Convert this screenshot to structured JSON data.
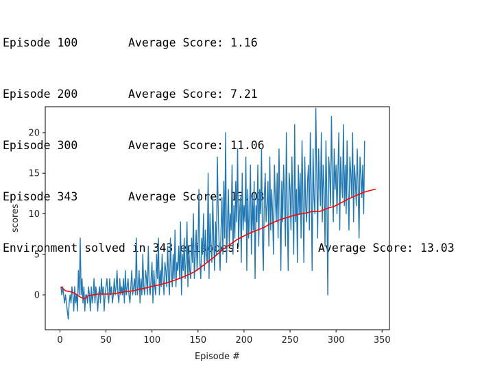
{
  "log": {
    "lines": [
      {
        "episode": "Episode 100",
        "score": "Average Score: 1.16"
      },
      {
        "episode": "Episode 200",
        "score": "Average Score: 7.21"
      },
      {
        "episode": "Episode 300",
        "score": "Average Score: 11.06"
      },
      {
        "episode": "Episode 343",
        "score": "Average Score: 13.03"
      }
    ],
    "solved": {
      "message": "Environment solved in 343 episodes!",
      "score": "Average Score: 13.03"
    }
  },
  "chart_data": {
    "type": "line",
    "xlabel": "Episode #",
    "ylabel": "scores",
    "xlim": [
      -16,
      358
    ],
    "ylim": [
      -4.3,
      23.2
    ],
    "xticks": [
      0,
      50,
      100,
      150,
      200,
      250,
      300,
      350
    ],
    "yticks": [
      0,
      5,
      10,
      15,
      20
    ],
    "grid": false,
    "colors": {
      "scores": "#1f77b4",
      "average": "#ff0000"
    },
    "series": [
      {
        "values": [
          1,
          0,
          1,
          0,
          -1,
          0,
          -1,
          -2,
          -3,
          -1,
          0,
          -1,
          1,
          0,
          -2,
          1,
          -1,
          0,
          -2,
          3,
          0,
          7,
          0,
          2,
          -1,
          1,
          -2,
          0,
          0,
          -1,
          1,
          0,
          -2,
          1,
          -1,
          0,
          2,
          -1,
          1,
          0,
          -2,
          0,
          1,
          -1,
          2,
          0,
          1,
          -2,
          0,
          1,
          2,
          0,
          -1,
          2,
          0,
          1,
          -1,
          0,
          2,
          0,
          1,
          3,
          0,
          -1,
          2,
          0,
          1,
          0,
          2,
          -1,
          3,
          0,
          1,
          2,
          0,
          -1,
          1,
          3,
          0,
          1,
          2,
          0,
          7,
          0,
          1,
          3,
          -1,
          2,
          0,
          5,
          1,
          0,
          3,
          2,
          0,
          6,
          1,
          0,
          2,
          4,
          -1,
          3,
          1,
          0,
          5,
          2,
          7,
          0,
          3,
          1,
          5,
          2,
          0,
          4,
          3,
          1,
          6,
          2,
          0,
          7,
          3,
          1,
          5,
          2,
          8,
          1,
          4,
          3,
          6,
          2,
          9,
          0,
          5,
          3,
          7,
          2,
          4,
          9,
          1,
          6,
          3,
          2,
          7,
          4,
          10,
          2,
          5,
          8,
          3,
          6,
          13,
          4,
          2,
          7,
          5,
          10,
          3,
          8,
          5,
          4,
          15,
          2,
          10,
          6,
          4,
          12,
          7,
          3,
          9,
          5,
          17,
          10,
          6,
          3,
          8,
          12,
          5,
          14,
          7,
          20,
          4,
          9,
          13,
          6,
          10,
          8,
          16,
          5,
          11,
          7,
          14,
          9,
          18,
          6,
          10,
          12,
          4,
          15,
          8,
          11,
          9,
          17,
          3,
          13,
          7,
          10,
          16,
          5,
          12,
          8,
          14,
          2,
          11,
          9,
          16,
          6,
          13,
          10,
          18,
          7,
          3,
          12,
          15,
          9,
          11,
          14,
          6,
          17,
          8,
          13,
          10,
          5,
          16,
          12,
          9,
          15,
          7,
          18,
          11,
          3,
          14,
          9,
          16,
          12,
          6,
          20,
          10,
          3,
          15,
          13,
          8,
          17,
          11,
          5,
          21,
          9,
          13,
          4,
          16,
          10,
          15,
          7,
          19,
          12,
          4,
          17,
          11,
          9,
          14,
          16,
          8,
          20,
          13,
          3,
          18,
          12,
          10,
          23,
          15,
          7,
          18,
          14,
          11,
          20,
          9,
          16,
          13,
          6,
          19,
          12,
          0,
          17,
          15,
          11,
          22,
          14,
          9,
          18,
          13,
          16,
          10,
          15,
          20,
          8,
          17,
          14,
          12,
          21,
          11,
          16,
          10,
          19,
          13,
          8,
          17,
          15,
          12,
          20,
          9,
          16,
          14,
          11,
          18,
          13,
          7,
          17,
          15,
          12,
          16,
          10,
          19
        ]
      },
      {
        "values": [
          1.0,
          0.5,
          0.4,
          0.2,
          -0.2,
          -0.5,
          -0.1,
          0.0,
          0.1,
          0.1,
          0.1,
          0.1,
          0.2,
          0.3,
          0.4,
          0.45,
          0.55,
          0.7,
          0.8,
          0.95,
          1.1,
          1.2,
          1.35,
          1.5,
          1.7,
          1.9,
          2.1,
          2.35,
          2.6,
          2.9,
          3.3,
          3.75,
          4.2,
          4.6,
          5.1,
          5.6,
          6.0,
          6.4,
          6.8,
          7.1,
          7.4,
          7.65,
          7.9,
          8.1,
          8.35,
          8.7,
          8.95,
          9.2,
          9.4,
          9.55,
          9.75,
          9.9,
          10.0,
          10.1,
          10.25,
          10.3,
          10.3,
          10.55,
          10.75,
          10.9,
          11.2,
          11.5,
          11.8,
          12.05,
          12.3,
          12.55,
          12.75,
          12.9,
          13.03
        ]
      }
    ]
  }
}
